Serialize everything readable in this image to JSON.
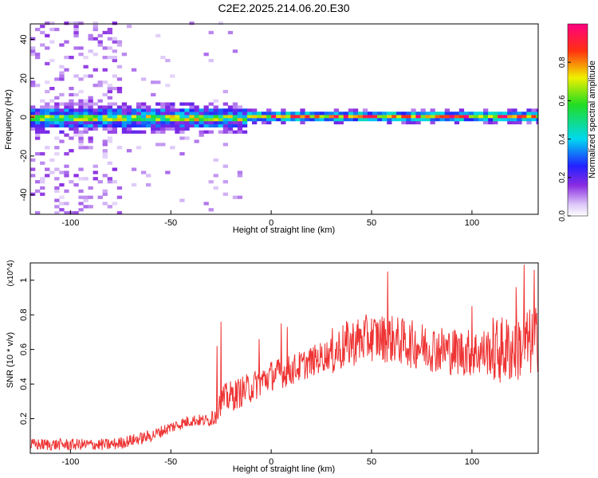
{
  "title": "C2E2.2025.214.06.20.E30",
  "chart_data": [
    {
      "type": "heatmap",
      "xlabel": "Height of straight line (km)",
      "ylabel": "Frequency (Hz)",
      "xlim": [
        -120,
        133
      ],
      "ylim": [
        -50,
        48
      ],
      "xticks": [
        -100,
        -50,
        0,
        50,
        100
      ],
      "yticks": [
        -40,
        -20,
        0,
        20,
        40
      ],
      "grid": false,
      "colorbar": {
        "label": "Normalized spectral amplitude",
        "range": [
          0,
          1
        ],
        "ticks": [
          0.0,
          0.2,
          0.4,
          0.6,
          0.8
        ],
        "colormap": "rainbow (white-violet-blue-cyan-green-yellow-red-magenta)",
        "placement": "right"
      },
      "summary": {
        "dominant_frequency_hz": 0,
        "broadband_region_km": [
          -120,
          -75
        ],
        "noisy_band_region_km": [
          -120,
          -12
        ],
        "narrow_band_region_km": [
          -12,
          133
        ]
      }
    },
    {
      "type": "line",
      "xlabel": "Height of straight line (km)",
      "ylabel": "SNR (10 * v/v)",
      "y_multiplier": "(x10^4)",
      "xlim": [
        -120,
        133
      ],
      "ylim": [
        0,
        1.1
      ],
      "xticks": [
        -100,
        -50,
        0,
        50,
        100
      ],
      "yticks": [
        0.2,
        0.4,
        0.6,
        0.8,
        1.0
      ],
      "color": "#ee3333",
      "grid": false,
      "trend": {
        "x": [
          -120,
          -100,
          -80,
          -75,
          -60,
          -50,
          -40,
          -30,
          -26,
          -20,
          -10,
          0,
          10,
          20,
          30,
          40,
          50,
          60,
          70,
          80,
          90,
          100,
          110,
          120,
          125,
          133
        ],
        "y": [
          0.05,
          0.05,
          0.05,
          0.06,
          0.1,
          0.15,
          0.19,
          0.19,
          0.3,
          0.33,
          0.38,
          0.45,
          0.48,
          0.53,
          0.58,
          0.64,
          0.67,
          0.66,
          0.63,
          0.61,
          0.59,
          0.58,
          0.59,
          0.6,
          0.62,
          0.66
        ]
      },
      "spikes": [
        {
          "x": -27,
          "y": 0.62
        },
        {
          "x": -25,
          "y": 0.76
        },
        {
          "x": -6,
          "y": 0.66
        },
        {
          "x": 5,
          "y": 0.75
        },
        {
          "x": 8,
          "y": 0.73
        },
        {
          "x": 58,
          "y": 1.05
        },
        {
          "x": 100,
          "y": 0.85
        },
        {
          "x": 122,
          "y": 0.96
        },
        {
          "x": 126,
          "y": 1.09
        },
        {
          "x": 131,
          "y": 1.06
        }
      ]
    }
  ]
}
